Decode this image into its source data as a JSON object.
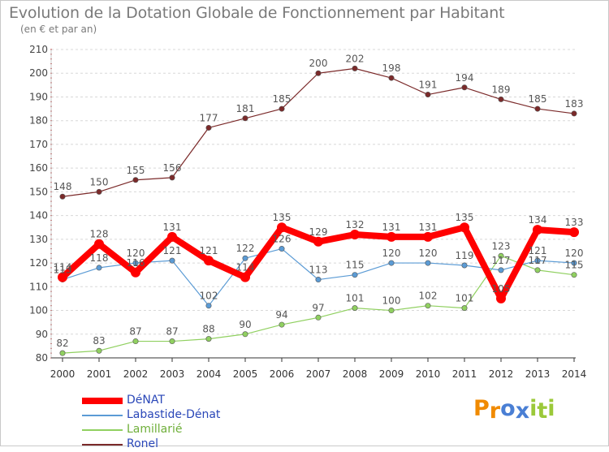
{
  "chart_data": {
    "type": "line",
    "title": "Evolution de la Dotation Globale de Fonctionnement par Habitant",
    "subtitle": "(en € et par an)",
    "x": [
      "2000",
      "2001",
      "2002",
      "2003",
      "2004",
      "2005",
      "2006",
      "2007",
      "2008",
      "2009",
      "2010",
      "2011",
      "2012",
      "2013",
      "2014"
    ],
    "ylim": [
      80,
      210
    ],
    "yticks": [
      80,
      90,
      100,
      110,
      120,
      130,
      140,
      150,
      160,
      170,
      180,
      190,
      200,
      210
    ],
    "grid": "horizontal dashed",
    "legend_position": "bottom-left",
    "series": [
      {
        "name": "DéNAT",
        "color": "#ff0000",
        "values": [
          114,
          128,
          116,
          131,
          121,
          114,
          135,
          129,
          132,
          131,
          131,
          135,
          105,
          134,
          133
        ],
        "labels": [
          "114",
          "128",
          "116",
          "131",
          "121",
          "114",
          "135",
          "129",
          "132",
          "131",
          "131",
          "135",
          "105",
          "134",
          "133"
        ]
      },
      {
        "name": "Labastide-Dénat",
        "color": "#5b9bd5",
        "values": [
          113,
          118,
          120,
          121,
          102,
          122,
          126,
          113,
          115,
          120,
          120,
          119,
          117,
          121,
          120
        ],
        "labels": [
          "113",
          "118",
          "120",
          "121",
          "102",
          "122",
          "126",
          "113",
          "115",
          "120",
          "120",
          "119",
          "117",
          "121",
          "120"
        ]
      },
      {
        "name": "Lamillarié",
        "color": "#90d060",
        "values": [
          82,
          83,
          87,
          87,
          88,
          90,
          94,
          97,
          101,
          100,
          102,
          101,
          123,
          117,
          115
        ],
        "labels": [
          "82",
          "83",
          "87",
          "87",
          "88",
          "90",
          "94",
          "97",
          "101",
          "100",
          "102",
          "101",
          "123",
          "117",
          "115"
        ]
      },
      {
        "name": "Ronel",
        "color": "#7b2a2a",
        "values": [
          148,
          150,
          155,
          156,
          177,
          181,
          185,
          200,
          202,
          198,
          191,
          194,
          189,
          185,
          183
        ],
        "labels": [
          "148",
          "150",
          "155",
          "156",
          "177",
          "181",
          "185",
          "200",
          "202",
          "198",
          "191",
          "194",
          "189",
          "185",
          "183"
        ]
      }
    ]
  },
  "logo": {
    "letters": [
      "P",
      "r",
      "o",
      "x",
      "i",
      "t",
      "i"
    ],
    "colors": [
      "#f08a00",
      "#f08a00",
      "#4a7fd4",
      "#4a7fd4",
      "#9bc93a",
      "#9bc93a",
      "#9bc93a"
    ]
  }
}
